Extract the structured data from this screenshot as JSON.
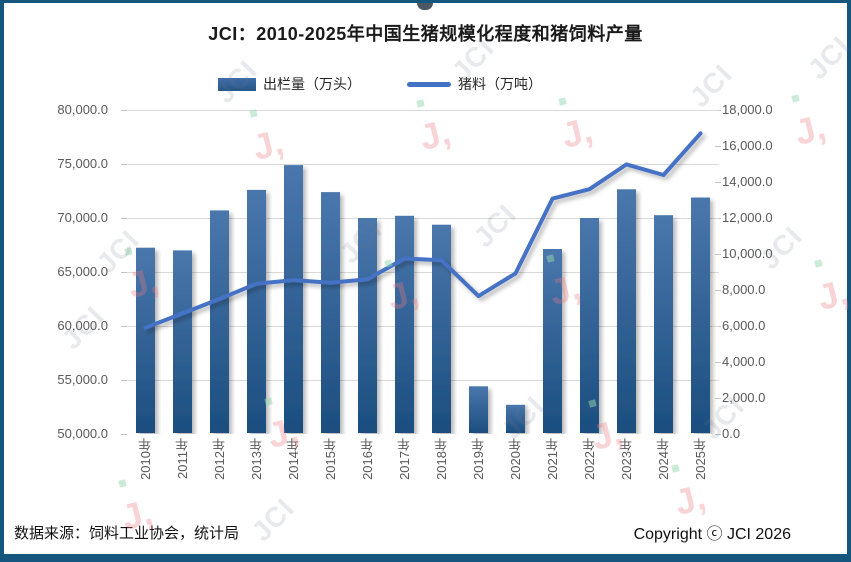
{
  "window": {
    "title": "JCI：2010-2025年中国生猪规模化程度和猪饲料产量"
  },
  "legend": {
    "bar_label": "出栏量（万头）",
    "line_label": "猪料（万吨）"
  },
  "footer": {
    "source": "数据来源：饲料工业协会，统计局",
    "copyright": "Copyright ⓒ JCI 2026"
  },
  "watermark_text": "JCI",
  "colors": {
    "frame": "#14567e",
    "bar_top": "#4a77ac",
    "bar_bottom": "#1b4e7f",
    "line": "#4472c4",
    "grid": "#d9d9d9",
    "axis_line": "#bfbfbf",
    "axis_text": "#595959"
  },
  "chart_data": {
    "type": "bar",
    "subtype": "bar-line-combo",
    "title": "JCI：2010-2025年中国生猪规模化程度和猪饲料产量",
    "categories": [
      "2010年",
      "2011年",
      "2012年",
      "2013年",
      "2014年",
      "2015年",
      "2016年",
      "2017年",
      "2018年",
      "2019年",
      "2020年",
      "2021年",
      "2022年",
      "2023年",
      "2024年",
      "2025年"
    ],
    "series": [
      {
        "name": "出栏量（万头）",
        "type": "bar",
        "axis": "left",
        "values": [
          67250,
          67000,
          70700,
          72600,
          74900,
          72400,
          70000,
          70200,
          69380,
          54420,
          52700,
          67130,
          70000,
          72660,
          70260,
          71900
        ]
      },
      {
        "name": "猪料（万吨）",
        "type": "line",
        "axis": "right",
        "values": [
          5900,
          6700,
          7500,
          8350,
          8550,
          8400,
          8600,
          9750,
          9650,
          7660,
          8920,
          13080,
          13600,
          14980,
          14390,
          16700
        ]
      }
    ],
    "left_axis": {
      "min": 50000,
      "max": 80000,
      "step": 5000,
      "tick_labels": [
        "80,000.0",
        "75,000.0",
        "70,000.0",
        "65,000.0",
        "60,000.0",
        "55,000.0",
        "50,000.0"
      ]
    },
    "right_axis": {
      "min": 0,
      "max": 18000,
      "step": 2000,
      "tick_labels": [
        "18,000.0",
        "16,000.0",
        "14,000.0",
        "12,000.0",
        "10,000.0",
        "8,000.0",
        "6,000.0",
        "4,000.0",
        "2,000.0",
        "0.0"
      ]
    },
    "grid": true,
    "legend_position": "top"
  }
}
